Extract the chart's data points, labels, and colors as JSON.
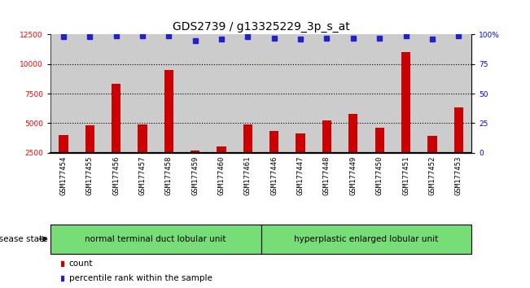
{
  "title": "GDS2739 / g13325229_3p_s_at",
  "categories": [
    "GSM177454",
    "GSM177455",
    "GSM177456",
    "GSM177457",
    "GSM177458",
    "GSM177459",
    "GSM177460",
    "GSM177461",
    "GSM177446",
    "GSM177447",
    "GSM177448",
    "GSM177449",
    "GSM177450",
    "GSM177451",
    "GSM177452",
    "GSM177453"
  ],
  "bar_values": [
    4000,
    4800,
    8300,
    4900,
    9500,
    2700,
    3000,
    4900,
    4300,
    4100,
    5200,
    5800,
    4600,
    11000,
    3900,
    6300
  ],
  "percentile_values": [
    98,
    98,
    99,
    99,
    99,
    95,
    96,
    98,
    97,
    96,
    97,
    97,
    97,
    99,
    96,
    99
  ],
  "ylim_left": [
    2500,
    12500
  ],
  "ylim_right": [
    0,
    100
  ],
  "yticks_left": [
    2500,
    5000,
    7500,
    10000,
    12500
  ],
  "yticks_right": [
    0,
    25,
    50,
    75,
    100
  ],
  "ytick_labels_right": [
    "0",
    "25",
    "50",
    "75",
    "100%"
  ],
  "bar_color": "#cc0000",
  "dot_color": "#2222cc",
  "group1_label": "normal terminal duct lobular unit",
  "group2_label": "hyperplastic enlarged lobular unit",
  "group1_count": 8,
  "group2_count": 8,
  "disease_state_label": "disease state",
  "legend_count_label": "count",
  "legend_percentile_label": "percentile rank within the sample",
  "background_color": "#ffffff",
  "bar_bg_color": "#cccccc",
  "group_bg_color": "#77dd77",
  "title_fontsize": 10,
  "tick_fontsize": 6.5,
  "label_fontsize": 7.5,
  "grid_dotted_color": "#000000",
  "dotted_lines": [
    5000,
    7500,
    10000
  ],
  "dot_size": 4
}
